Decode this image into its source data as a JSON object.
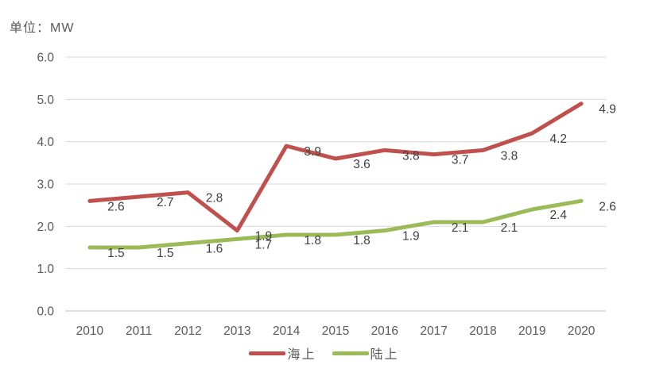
{
  "chart_data": {
    "type": "line",
    "unit_label": "单位：MW",
    "categories": [
      "2010",
      "2011",
      "2012",
      "2013",
      "2014",
      "2015",
      "2016",
      "2017",
      "2018",
      "2019",
      "2020"
    ],
    "y_ticks": [
      "0.0",
      "1.0",
      "2.0",
      "3.0",
      "4.0",
      "5.0",
      "6.0"
    ],
    "ylim": [
      0,
      6
    ],
    "grid": true,
    "legend_position": "bottom",
    "series": [
      {
        "name": "海上",
        "color": "#C0504D",
        "values": [
          2.6,
          2.7,
          2.8,
          1.9,
          3.9,
          3.6,
          3.8,
          3.7,
          3.8,
          4.2,
          4.9
        ],
        "labels": [
          "2.6",
          "2.7",
          "2.8",
          "1.9",
          "3.9",
          "3.6",
          "3.8",
          "3.7",
          "3.8",
          "4.2",
          "4.9"
        ]
      },
      {
        "name": "陆上",
        "color": "#9BBB59",
        "values": [
          1.5,
          1.5,
          1.6,
          1.7,
          1.8,
          1.8,
          1.9,
          2.1,
          2.1,
          2.4,
          2.6
        ],
        "labels": [
          "1.5",
          "1.5",
          "1.6",
          "1.7",
          "1.8",
          "1.8",
          "1.9",
          "2.1",
          "2.1",
          "2.4",
          "2.6"
        ]
      }
    ],
    "colors": {
      "axis_text": "#595959",
      "data_label": "#404040",
      "gridline": "#D9D9D9",
      "baseline": "#BFBFBF"
    }
  }
}
